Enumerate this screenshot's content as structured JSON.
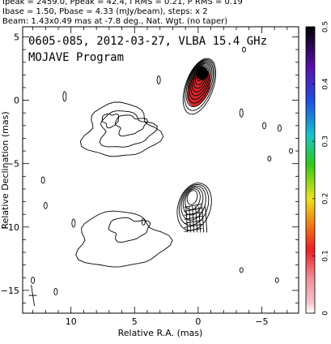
{
  "header": {
    "line1": "Ipeak = 2459.0, Ppeak = 42.4, I RMS = 0.21, P RMS = 0.19",
    "line2": "Ibase = 1.50, Pbase = 4.33 (mJy/beam), steps: x 2",
    "line3": "Beam: 1.43x0.49 mas at -7.8 deg., Nat. Wgt. (no taper)"
  },
  "chart_data": {
    "type": "contour",
    "title": "0605-085, 2012-03-27, VLBA 15.4 GHz",
    "subtitle": "MOJAVE Program",
    "xlabel": "Relative R.A. (mas)",
    "ylabel": "Relative Declination (mas)",
    "xlim": [
      13.8,
      -7.9
    ],
    "ylim": [
      -16.8,
      5.8
    ],
    "x_ticks": [
      10,
      5,
      0,
      -5
    ],
    "x_tick_labels": [
      "10",
      "5",
      "0",
      "−5"
    ],
    "y_ticks": [
      5,
      0,
      -5,
      -10,
      -15
    ],
    "y_tick_labels": [
      "5",
      "0",
      "−5",
      "−10",
      "−15"
    ],
    "beam": {
      "major": 1.43,
      "minor": 0.49,
      "pa_deg": -7.8
    },
    "colorbar": {
      "min": 0,
      "max": 0.5,
      "ticks": [
        0,
        0.1,
        0.2,
        0.3,
        0.4,
        0.5
      ],
      "tick_labels": [
        "0",
        "0.1",
        "0.2",
        "0.3",
        "0.4",
        "0.5"
      ],
      "colors": [
        "#ffffff",
        "#f2a0a8",
        "#e8202a",
        "#f07a18",
        "#e9e21c",
        "#37c81a",
        "#18c0c8",
        "#2050e0",
        "#5a10a8",
        "#000000"
      ]
    },
    "core": {
      "x": -0.1,
      "y": 1.1,
      "n_contours": 10
    },
    "components": [
      {
        "name": "southern",
        "x": 0.3,
        "y": -8.4,
        "n_contours": 6
      },
      {
        "name": "west-hatched",
        "x": 0.2,
        "y": -9.4,
        "n_contours": 1
      }
    ],
    "lobes": [
      {
        "name": "north-east",
        "x": 6.0,
        "y": -2.2
      },
      {
        "name": "south-east",
        "x": 6.5,
        "y": -10.8
      }
    ],
    "colors": {
      "contour": "#000000",
      "core_fill": "#d8262a",
      "frame": "#000000"
    }
  }
}
